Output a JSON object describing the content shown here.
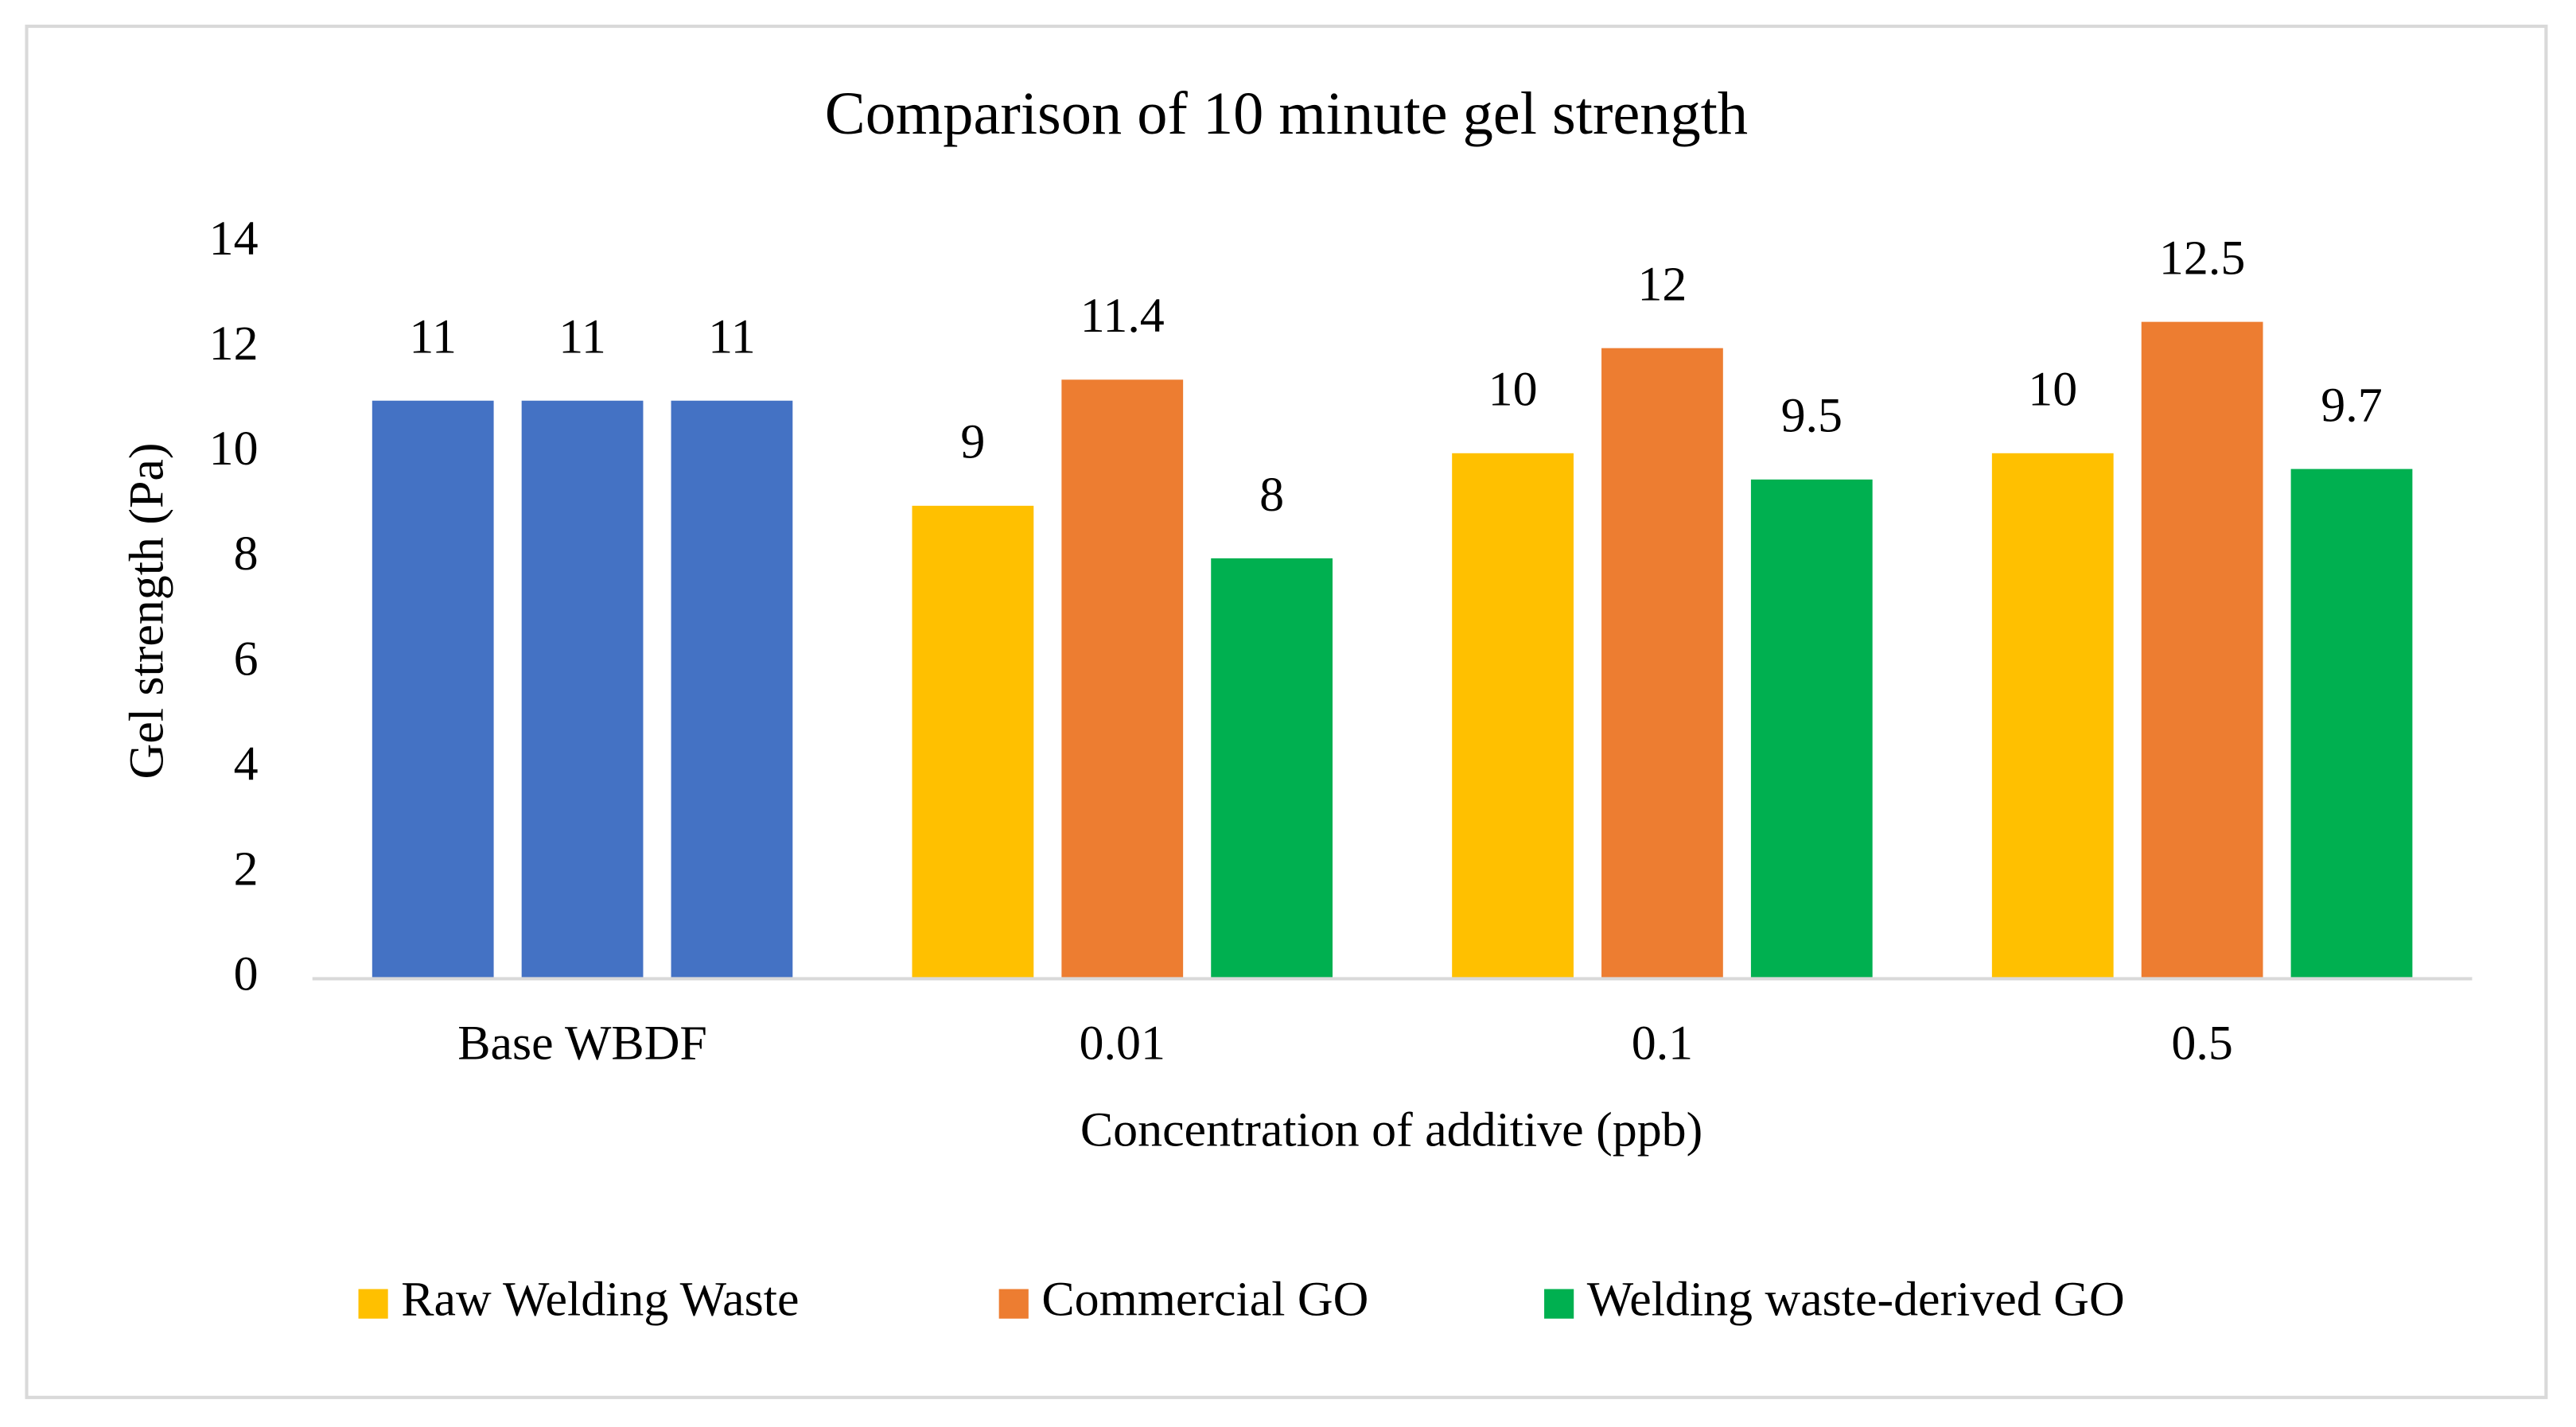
{
  "chart_data": {
    "type": "bar",
    "title": "Comparison of 10 minute gel strength",
    "x_label": "Concentration of additive (ppb)",
    "y_label": "Gel strength (Pa)",
    "categories": [
      "Base WBDF",
      "0.01",
      "0.1",
      "0.5"
    ],
    "series": [
      {
        "name": "Raw Welding Waste",
        "color": "#ffc000",
        "colors": [
          "#4472c4",
          "#ffc000",
          "#ffc000",
          "#ffc000"
        ],
        "values": [
          11,
          9,
          10,
          10
        ]
      },
      {
        "name": "Commercial GO",
        "color": "#ed7d31",
        "colors": [
          "#4472c4",
          "#ed7d31",
          "#ed7d31",
          "#ed7d31"
        ],
        "values": [
          11,
          11.4,
          12,
          12.5
        ]
      },
      {
        "name": "Welding waste-derived GO",
        "color": "#00b050",
        "colors": [
          "#4472c4",
          "#00b050",
          "#00b050",
          "#00b050"
        ],
        "values": [
          11,
          8,
          9.5,
          9.7
        ]
      }
    ],
    "ylim": [
      0,
      14
    ],
    "yticks": [
      0,
      2,
      4,
      6,
      8,
      10,
      12,
      14
    ],
    "grid": false,
    "legend": "bottom"
  }
}
